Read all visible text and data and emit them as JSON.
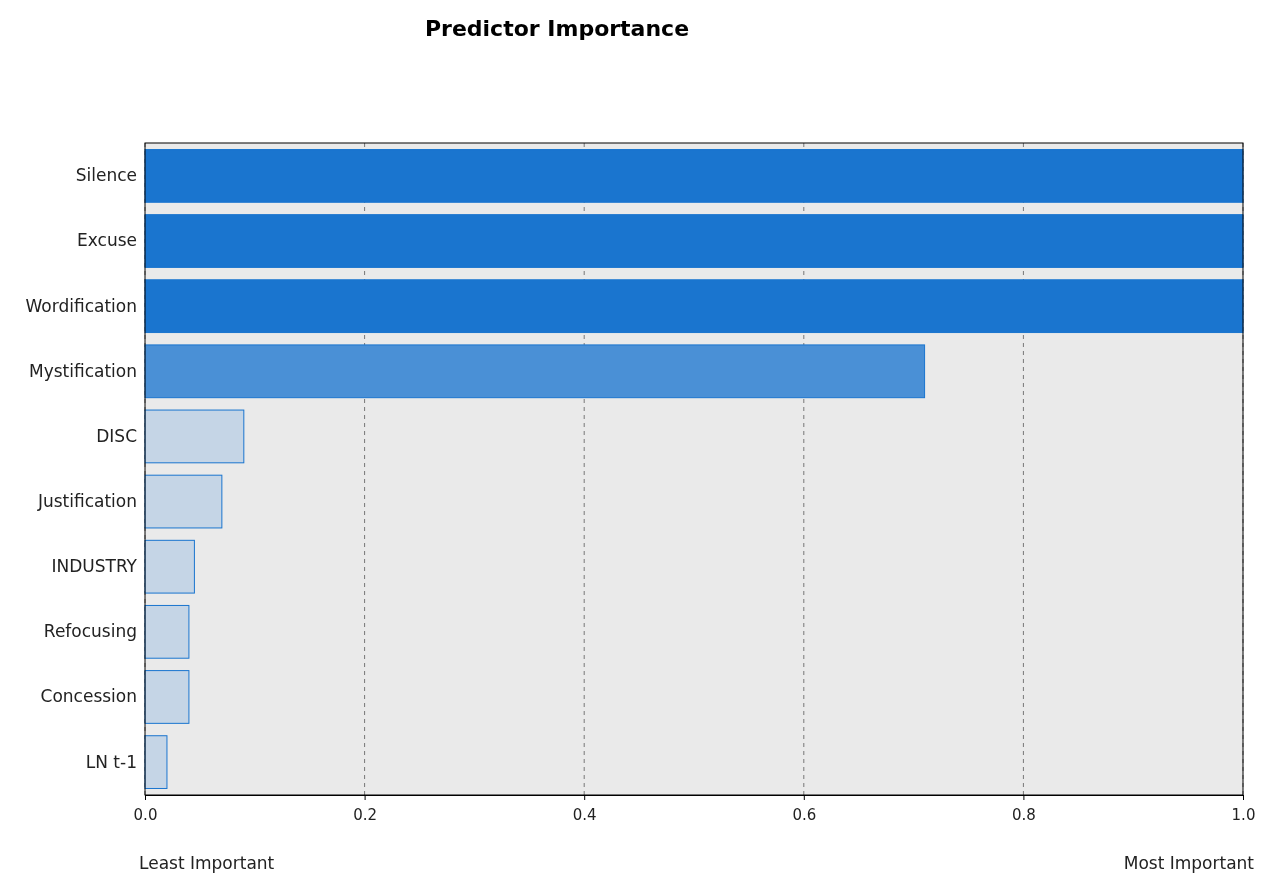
{
  "chart_data": {
    "type": "bar",
    "orientation": "horizontal",
    "title": "Predictor Importance",
    "categories": [
      "Silence",
      "Excuse",
      "Wordification",
      "Mystification",
      "DISC",
      "Justification",
      "INDUSTRY",
      "Refocusing",
      "Concession",
      "LN t-1"
    ],
    "values": [
      1.0,
      1.0,
      1.0,
      0.71,
      0.09,
      0.07,
      0.045,
      0.04,
      0.04,
      0.02
    ],
    "colors": [
      "#1a75cf",
      "#1a75cf",
      "#1a75cf",
      "#4a90d6",
      "#c5d5e6",
      "#c5d5e6",
      "#c5d5e6",
      "#c5d5e6",
      "#c5d5e6",
      "#c5d5e6"
    ],
    "xlim": [
      0,
      1
    ],
    "xticks": [
      {
        "value": 0,
        "label": "0.0"
      },
      {
        "value": 0.2,
        "label": "0.2"
      },
      {
        "value": 0.4,
        "label": "0.4"
      },
      {
        "value": 0.6,
        "label": "0.6"
      },
      {
        "value": 0.8,
        "label": "0.8"
      },
      {
        "value": 1,
        "label": "1.0"
      }
    ],
    "grid": "x",
    "annotations": [
      "Least Important",
      "Most Important"
    ]
  }
}
